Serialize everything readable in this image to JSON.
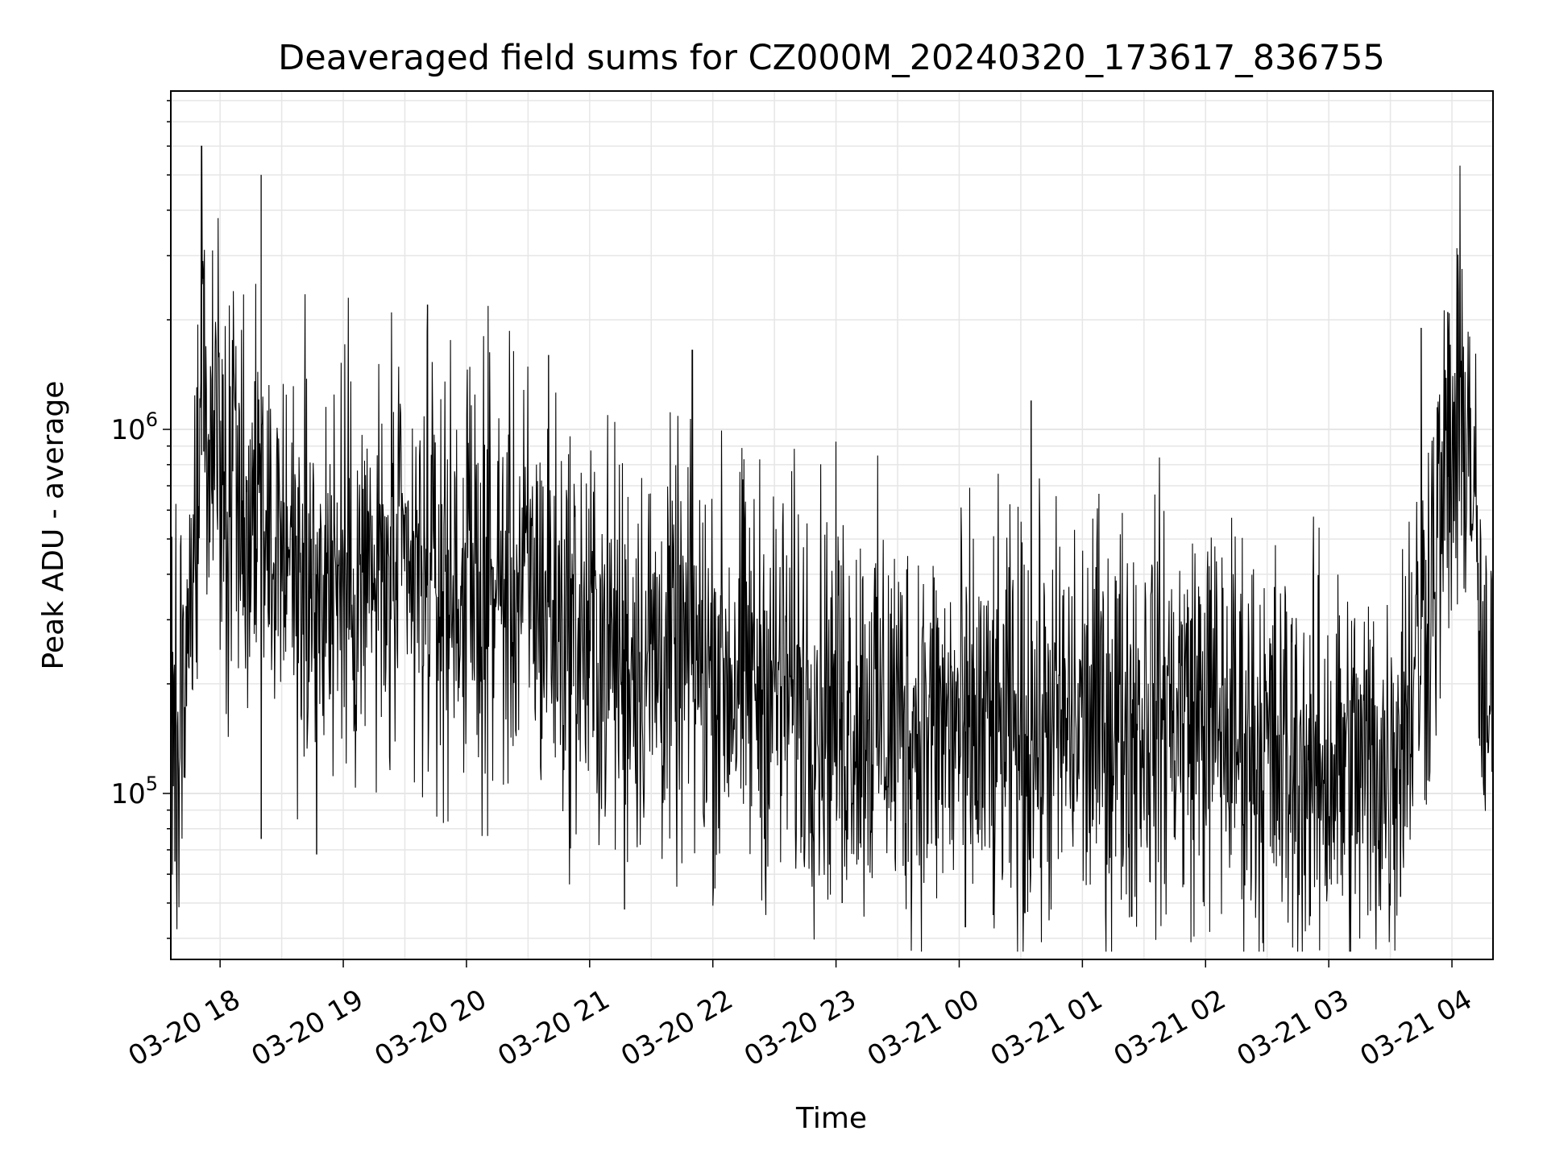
{
  "chart_data": {
    "type": "line",
    "title": "Deaveraged field sums for CZ000M_20240320_173617_836755",
    "xlabel": "Time",
    "ylabel": "Peak ADU - average",
    "yscale": "log",
    "grid": true,
    "line_color": "#000000",
    "grid_color": "#e6e6e6",
    "xlim": [
      "2024-03-20 17:36",
      "2024-03-21 04:20"
    ],
    "ylim": [
      35000,
      8500000
    ],
    "x_ticks": [
      {
        "value": "2024-03-20 18:00",
        "label": "03-20 18"
      },
      {
        "value": "2024-03-20 19:00",
        "label": "03-20 19"
      },
      {
        "value": "2024-03-20 20:00",
        "label": "03-20 20"
      },
      {
        "value": "2024-03-20 21:00",
        "label": "03-20 21"
      },
      {
        "value": "2024-03-20 22:00",
        "label": "03-20 22"
      },
      {
        "value": "2024-03-20 23:00",
        "label": "03-20 23"
      },
      {
        "value": "2024-03-21 00:00",
        "label": "03-21 00"
      },
      {
        "value": "2024-03-21 01:00",
        "label": "03-21 01"
      },
      {
        "value": "2024-03-21 02:00",
        "label": "03-21 02"
      },
      {
        "value": "2024-03-21 03:00",
        "label": "03-21 03"
      },
      {
        "value": "2024-03-21 04:00",
        "label": "03-21 04"
      }
    ],
    "y_ticks": [
      {
        "value": 100000,
        "base": "10",
        "exponent": "5"
      },
      {
        "value": 1000000,
        "base": "10",
        "exponent": "6"
      }
    ],
    "series": [
      {
        "values": [
          [
            "2024-03-20 17:36",
            120000
          ],
          [
            "2024-03-20 17:41",
            200000
          ],
          [
            "2024-03-20 17:46",
            320000
          ],
          [
            "2024-03-20 17:51",
            850000
          ],
          [
            "2024-03-20 17:56",
            950000
          ],
          [
            "2024-03-20 18:00",
            800000
          ],
          [
            "2024-03-20 18:06",
            700000
          ],
          [
            "2024-03-20 18:12",
            650000
          ],
          [
            "2024-03-20 18:18",
            600000
          ],
          [
            "2024-03-20 18:30",
            450000
          ],
          [
            "2024-03-20 18:45",
            400000
          ],
          [
            "2024-03-20 19:00",
            400000
          ],
          [
            "2024-03-20 19:15",
            380000
          ],
          [
            "2024-03-20 19:30",
            380000
          ],
          [
            "2024-03-20 19:45",
            370000
          ],
          [
            "2024-03-20 20:00",
            380000
          ],
          [
            "2024-03-20 20:15",
            370000
          ],
          [
            "2024-03-20 20:30",
            380000
          ],
          [
            "2024-03-20 20:45",
            300000
          ],
          [
            "2024-03-20 21:00",
            260000
          ],
          [
            "2024-03-20 21:15",
            250000
          ],
          [
            "2024-03-20 21:30",
            240000
          ],
          [
            "2024-03-20 21:45",
            230000
          ],
          [
            "2024-03-20 22:00",
            220000
          ],
          [
            "2024-03-20 22:15",
            210000
          ],
          [
            "2024-03-20 22:30",
            200000
          ],
          [
            "2024-03-20 22:45",
            190000
          ],
          [
            "2024-03-20 23:00",
            180000
          ],
          [
            "2024-03-20 23:15",
            170000
          ],
          [
            "2024-03-20 23:30",
            160000
          ],
          [
            "2024-03-20 23:45",
            150000
          ],
          [
            "2024-03-21 00:00",
            150000
          ],
          [
            "2024-03-21 00:15",
            140000
          ],
          [
            "2024-03-21 00:30",
            145000
          ],
          [
            "2024-03-21 00:45",
            150000
          ],
          [
            "2024-03-21 01:00",
            155000
          ],
          [
            "2024-03-21 01:15",
            160000
          ],
          [
            "2024-03-21 01:30",
            170000
          ],
          [
            "2024-03-21 01:45",
            170000
          ],
          [
            "2024-03-21 02:00",
            165000
          ],
          [
            "2024-03-21 02:15",
            150000
          ],
          [
            "2024-03-21 02:30",
            130000
          ],
          [
            "2024-03-21 02:45",
            120000
          ],
          [
            "2024-03-21 03:00",
            120000
          ],
          [
            "2024-03-21 03:15",
            115000
          ],
          [
            "2024-03-21 03:30",
            120000
          ],
          [
            "2024-03-21 03:40",
            200000
          ],
          [
            "2024-03-21 03:50",
            400000
          ],
          [
            "2024-03-21 03:57",
            700000
          ],
          [
            "2024-03-21 04:05",
            1100000
          ],
          [
            "2024-03-21 04:09",
            1000000
          ],
          [
            "2024-03-21 04:13",
            300000
          ],
          [
            "2024-03-21 04:16",
            130000
          ],
          [
            "2024-03-21 04:20",
            150000
          ]
        ]
      }
    ],
    "peaks": [
      [
        "2024-03-20 17:51",
        6000000
      ],
      [
        "2024-03-20 17:52",
        2600000
      ],
      [
        "2024-03-20 18:20",
        5000000
      ],
      [
        "2024-03-20 19:41",
        2200000
      ],
      [
        "2024-03-20 20:40",
        1600000
      ],
      [
        "2024-03-20 21:50",
        1650000
      ],
      [
        "2024-03-21 00:35",
        1200000
      ],
      [
        "2024-03-21 03:45",
        1900000
      ],
      [
        "2024-03-21 03:58",
        2100000
      ]
    ],
    "troughs": [
      [
        "2024-03-20 17:38",
        65000
      ],
      [
        "2024-03-20 18:20",
        75000
      ],
      [
        "2024-03-20 18:47",
        68000
      ],
      [
        "2024-03-20 21:17",
        48000
      ],
      [
        "2024-03-20 23:03",
        50000
      ],
      [
        "2024-03-21 00:03",
        43000
      ],
      [
        "2024-03-21 00:32",
        47000
      ],
      [
        "2024-03-21 01:24",
        46000
      ],
      [
        "2024-03-21 02:51",
        46000
      ],
      [
        "2024-03-21 03:35",
        52000
      ]
    ]
  }
}
